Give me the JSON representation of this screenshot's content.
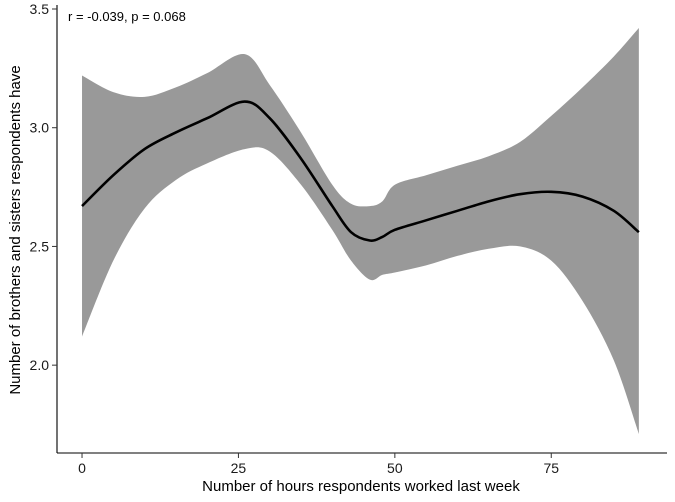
{
  "chart_data": {
    "type": "line",
    "xlabel": "Number of hours respondents worked last week",
    "ylabel": "Number of brothers and sisters respondents have",
    "annotation": "r = -0.039, p = 0.068",
    "xlim": [
      -4,
      93.5
    ],
    "ylim": [
      1.63,
      3.5
    ],
    "x_ticks": [
      0,
      25,
      50,
      75
    ],
    "x_tick_labels": [
      "0",
      "25",
      "50",
      "75"
    ],
    "y_ticks": [
      2.0,
      2.5,
      3.0,
      3.5
    ],
    "y_tick_labels": [
      "2.0",
      "2.5",
      "3.0",
      "3.5"
    ],
    "grid": false,
    "series": [
      {
        "kind": "smooth-fit",
        "color": "#000000",
        "ribbon_color": "#999999",
        "x": [
          0,
          5,
          10,
          15,
          20,
          26,
          30,
          35,
          40,
          43,
          46,
          48,
          50,
          55,
          60,
          65,
          70,
          75,
          80,
          85,
          89
        ],
        "y": [
          2.67,
          2.8,
          2.91,
          2.98,
          3.04,
          3.11,
          3.04,
          2.87,
          2.67,
          2.56,
          2.525,
          2.54,
          2.57,
          2.61,
          2.65,
          2.69,
          2.72,
          2.73,
          2.71,
          2.65,
          2.56
        ],
        "upper": [
          3.22,
          3.15,
          3.13,
          3.17,
          3.23,
          3.31,
          3.18,
          2.98,
          2.76,
          2.68,
          2.67,
          2.69,
          2.76,
          2.8,
          2.84,
          2.88,
          2.94,
          3.05,
          3.17,
          3.3,
          3.42
        ],
        "lower": [
          2.12,
          2.44,
          2.66,
          2.78,
          2.85,
          2.91,
          2.9,
          2.76,
          2.57,
          2.44,
          2.36,
          2.38,
          2.39,
          2.42,
          2.46,
          2.49,
          2.5,
          2.44,
          2.27,
          2.02,
          1.71
        ]
      }
    ]
  }
}
